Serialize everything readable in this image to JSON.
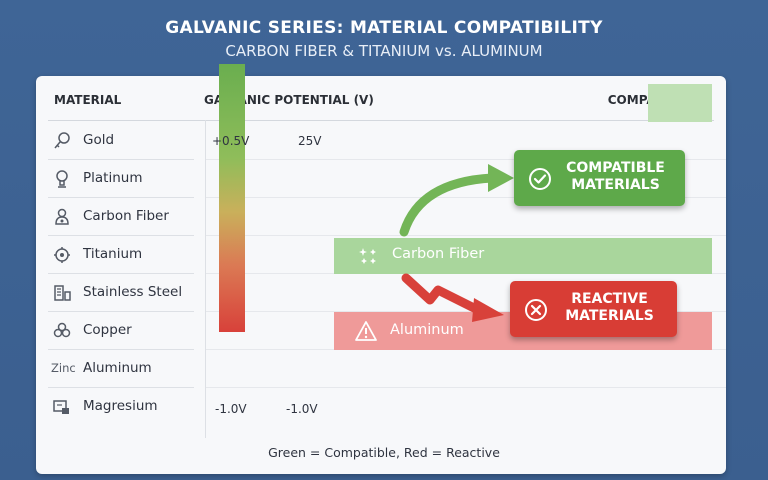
{
  "header": {
    "title": "GALVANIC SERIES: MATERIAL COMPATIBILITY",
    "subtitle": "CARBON FIBER & TITANIUM vs. ALUMINUM"
  },
  "table": {
    "col_material": "MATERIAL",
    "col_potential": "GALVANIC POTENTIAL (V)",
    "col_compatibility": "COMPATIBILITY",
    "materials": [
      {
        "label": "Gold",
        "icon": "gold-icon"
      },
      {
        "label": "Platinum",
        "icon": "platinum-icon"
      },
      {
        "label": "Carbon Fiber",
        "icon": "carbon-fiber-icon"
      },
      {
        "label": "Titanium",
        "icon": "titanium-icon"
      },
      {
        "label": "Stainless Steel",
        "icon": "stainless-steel-icon"
      },
      {
        "label": "Copper",
        "icon": "copper-icon"
      },
      {
        "label": "Aluminum",
        "icon_text": "Zinc"
      },
      {
        "label": "Magresium",
        "icon": "magnesium-icon"
      }
    ]
  },
  "scale": {
    "top_left": "+0.5V",
    "top_right": "25V",
    "bottom_left": "-1.0V",
    "bottom_right": "-1.0V"
  },
  "bands": {
    "carbon_fiber": "Carbon Fiber",
    "aluminum": "Aluminum"
  },
  "callouts": {
    "compatible": "COMPATIBLE MATERIALS",
    "reactive": "REACTIVE MATERIALS"
  },
  "legend": "Green = Compatible, Red = Reactive",
  "colors": {
    "background": "#3f6596",
    "compatible": "#5ea94a",
    "reactive": "#d83d35"
  }
}
